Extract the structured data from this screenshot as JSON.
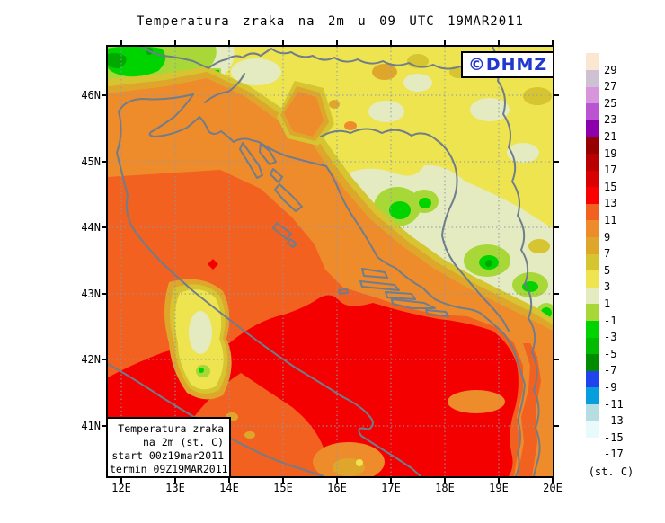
{
  "title": "Temperatura zraka na 2m u 09 UTC 19MAR2011",
  "stamp": {
    "text": "©DHMZ"
  },
  "axes": {
    "lat": [
      "46N",
      "45N",
      "44N",
      "43N",
      "42N",
      "41N"
    ],
    "lon": [
      "12E",
      "13E",
      "14E",
      "15E",
      "16E",
      "17E",
      "18E",
      "19E",
      "20E"
    ]
  },
  "info_box": {
    "lines": [
      "Temperatura zraka",
      "na 2m (st. C)",
      "start 00z19mar2011",
      "termin 09Z19MAR2011"
    ]
  },
  "colorbar": {
    "unit": "(st. C)",
    "items": [
      {
        "label": "29",
        "color": "#FBE7D1"
      },
      {
        "label": "27",
        "color": "#CEC1D3"
      },
      {
        "label": "25",
        "color": "#D795DB"
      },
      {
        "label": "23",
        "color": "#BB54D0"
      },
      {
        "label": "21",
        "color": "#8C01A9"
      },
      {
        "label": "19",
        "color": "#960000"
      },
      {
        "label": "17",
        "color": "#B80000"
      },
      {
        "label": "15",
        "color": "#D80000"
      },
      {
        "label": "13",
        "color": "#FB0000"
      },
      {
        "label": "11",
        "color": "#F2611F"
      },
      {
        "label": "9",
        "color": "#EE8B2B"
      },
      {
        "label": "7",
        "color": "#DFA62C"
      },
      {
        "label": "5",
        "color": "#D6C430"
      },
      {
        "label": "3",
        "color": "#EDE44F"
      },
      {
        "label": "1",
        "color": "#E4EBC0"
      },
      {
        "label": "-1",
        "color": "#A8D838"
      },
      {
        "label": "-3",
        "color": "#00D400"
      },
      {
        "label": "-5",
        "color": "#00BB00"
      },
      {
        "label": "-7",
        "color": "#008B00"
      },
      {
        "label": "-9",
        "color": "#2143EE"
      },
      {
        "label": "-11",
        "color": "#069EDC"
      },
      {
        "label": "-13",
        "color": "#B5DDE2"
      },
      {
        "label": "-15",
        "color": "#E8FAFA"
      },
      {
        "label": "-17",
        "color": "#FFFFFF"
      }
    ]
  },
  "map_colors": {
    "coastline": "#6F7D8C",
    "grid": "#8C99AF",
    "background": "#EDE44F"
  }
}
